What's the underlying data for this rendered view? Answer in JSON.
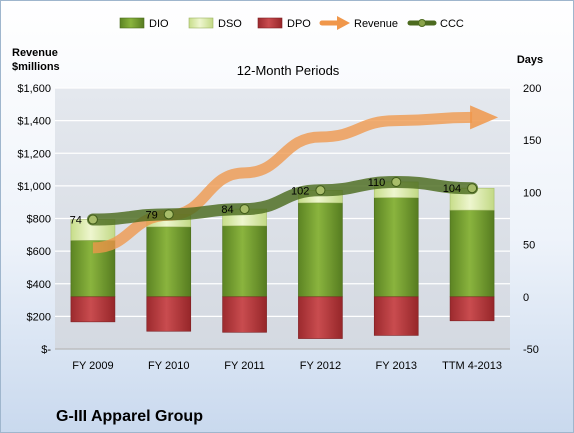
{
  "chart_data": {
    "type": "bar",
    "title": "12-Month Periods",
    "company": "G-III Apparel Group",
    "left_axis_label_line1": "Revenue",
    "left_axis_label_line2": "$millions",
    "right_axis_label": "Days",
    "categories": [
      "FY 2009",
      "FY 2010",
      "FY 2011",
      "FY 2012",
      "FY 2013",
      "TTM 4-2013"
    ],
    "y_left_ticks": [
      "$-",
      "$200",
      "$400",
      "$600",
      "$800",
      "$1,000",
      "$1,200",
      "$1,400",
      "$1,600"
    ],
    "y_left_range": [
      0,
      1600
    ],
    "y_right_ticks": [
      "-50",
      "0",
      "50",
      "100",
      "150",
      "200"
    ],
    "y_right_range": [
      -50,
      200
    ],
    "grid": true,
    "legend_position": "top",
    "legend": [
      {
        "name": "DIO",
        "kind": "bar",
        "color": "#6e9a2c"
      },
      {
        "name": "DSO",
        "kind": "bar",
        "color": "#d9eaa6"
      },
      {
        "name": "DPO",
        "kind": "bar",
        "color": "#b8393c"
      },
      {
        "name": "Revenue",
        "kind": "arrow",
        "color": "#f0974a"
      },
      {
        "name": "CCC",
        "kind": "line",
        "color": "#4c6b1f"
      }
    ],
    "series": [
      {
        "name": "DIO",
        "axis": "right",
        "values": [
          54,
          67,
          68,
          90,
          95,
          83
        ]
      },
      {
        "name": "DSO",
        "axis": "right",
        "values": [
          20,
          12,
          16,
          12,
          15,
          21
        ]
      },
      {
        "name": "DPO",
        "axis": "right",
        "values": [
          -24,
          -33,
          -34,
          -40,
          -37,
          -23
        ]
      },
      {
        "name": "Revenue",
        "axis": "left",
        "values": [
          620,
          820,
          1080,
          1300,
          1400,
          1420
        ]
      },
      {
        "name": "CCC",
        "axis": "right",
        "values": [
          74,
          79,
          84,
          102,
          110,
          104
        ],
        "labels": [
          "74",
          "79",
          "84",
          "102",
          "110",
          "104"
        ]
      }
    ]
  }
}
